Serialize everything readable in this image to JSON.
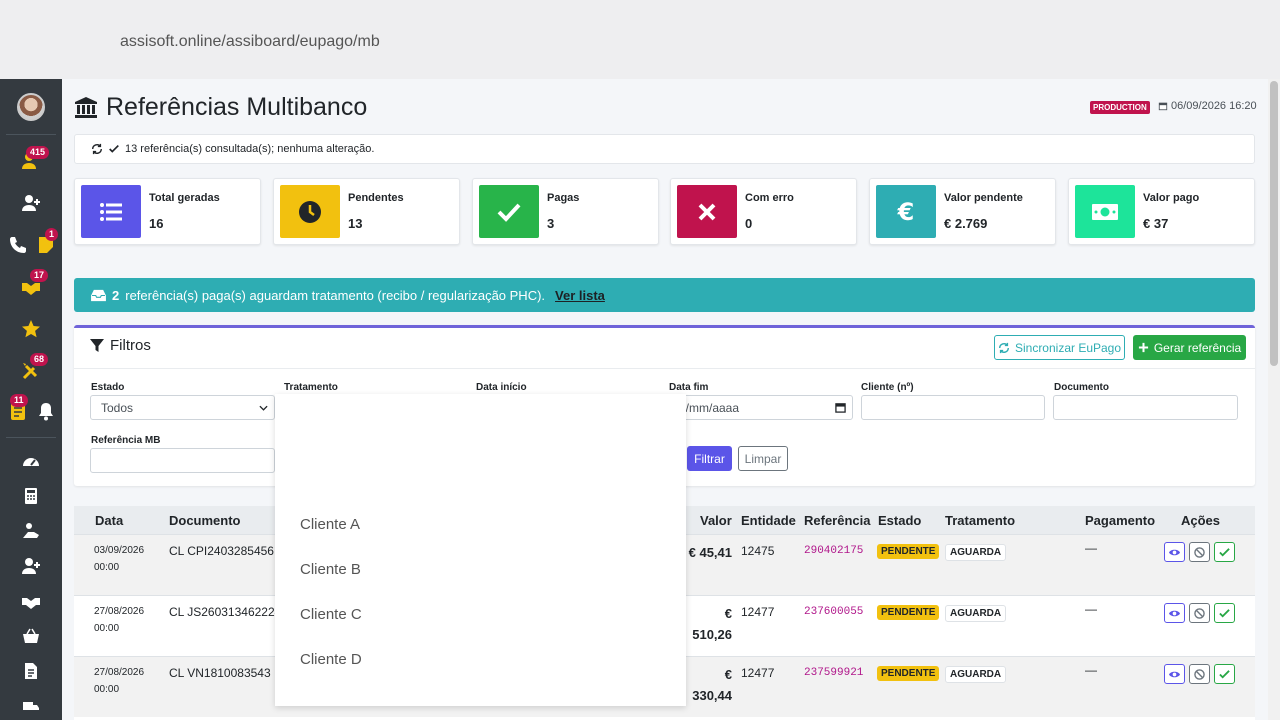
{
  "browser": {
    "url": "assisoft.online/assiboard/eupago/mb"
  },
  "sidebar": {
    "badges": {
      "users": "415",
      "notes": "1",
      "handshake": "17",
      "tools": "68",
      "alerts": "11"
    }
  },
  "header": {
    "title": "Referências Multibanco",
    "environment": "PRODUCTION",
    "datetime": "06/09/2026 16:20"
  },
  "status": {
    "message": "13 referência(s) consultada(s); nenhuma alteração."
  },
  "cards": [
    {
      "label": "Total geradas",
      "value": "16",
      "color": "#5b55e8",
      "icon": "list-icon"
    },
    {
      "label": "Pendentes",
      "value": "13",
      "color": "#f2c10f",
      "icon": "clock-icon"
    },
    {
      "label": "Pagas",
      "value": "3",
      "color": "#28b44a",
      "icon": "check-icon"
    },
    {
      "label": "Com erro",
      "value": "0",
      "color": "#c0134d",
      "icon": "x-icon"
    },
    {
      "label": "Valor pendente",
      "value": "€ 2.769",
      "color": "#2eadb3",
      "icon": "euro-icon"
    },
    {
      "label": "Valor pago",
      "value": "€ 37",
      "color": "#1de49a",
      "icon": "money-icon"
    }
  ],
  "alert": {
    "count": "2",
    "text": "referência(s) paga(s) aguardam tratamento (recibo / regularização PHC).",
    "link": "Ver lista"
  },
  "filters": {
    "title": "Filtros",
    "sync_label": "Sincronizar EuPago",
    "generate_label": "Gerar referência",
    "labels": {
      "estado": "Estado",
      "tratamento": "Tratamento",
      "data_inicio": "Data início",
      "data_fim": "Data fim",
      "cliente": "Cliente (nº)",
      "documento": "Documento",
      "referencia": "Referência MB"
    },
    "estado_value": "Todos",
    "data_fim_value": "d/mm/aaaa",
    "filtrar_label": "Filtrar",
    "limpar_label": "Limpar"
  },
  "table": {
    "headers": [
      "Data",
      "Documento",
      "Valor",
      "Entidade",
      "Referência",
      "Estado",
      "Tratamento",
      "Pagamento",
      "Ações"
    ],
    "rows": [
      {
        "date": "03/09/2026",
        "time": "00:00",
        "doc": "CL CPI2403285456",
        "valor1": "€ 45,41",
        "valor2": "",
        "ent": "12475",
        "ref": "290402175",
        "estado": "PENDENTE",
        "trat": "AGUARDA",
        "pag": "—"
      },
      {
        "date": "27/08/2026",
        "time": "00:00",
        "doc": "CL JS260313462224",
        "valor1": "€",
        "valor2": "510,26",
        "ent": "12477",
        "ref": "237600055",
        "estado": "PENDENTE",
        "trat": "AGUARDA",
        "pag": "—"
      },
      {
        "date": "27/08/2026",
        "time": "00:00",
        "doc": "CL VN1810083543",
        "valor1": "€",
        "valor2": "330,44",
        "ent": "12477",
        "ref": "237599921",
        "estado": "PENDENTE",
        "trat": "AGUARDA",
        "pag": "—"
      }
    ]
  },
  "dropdown": {
    "options": [
      "Cliente A",
      "Cliente B",
      "Cliente C",
      "Cliente D"
    ]
  }
}
